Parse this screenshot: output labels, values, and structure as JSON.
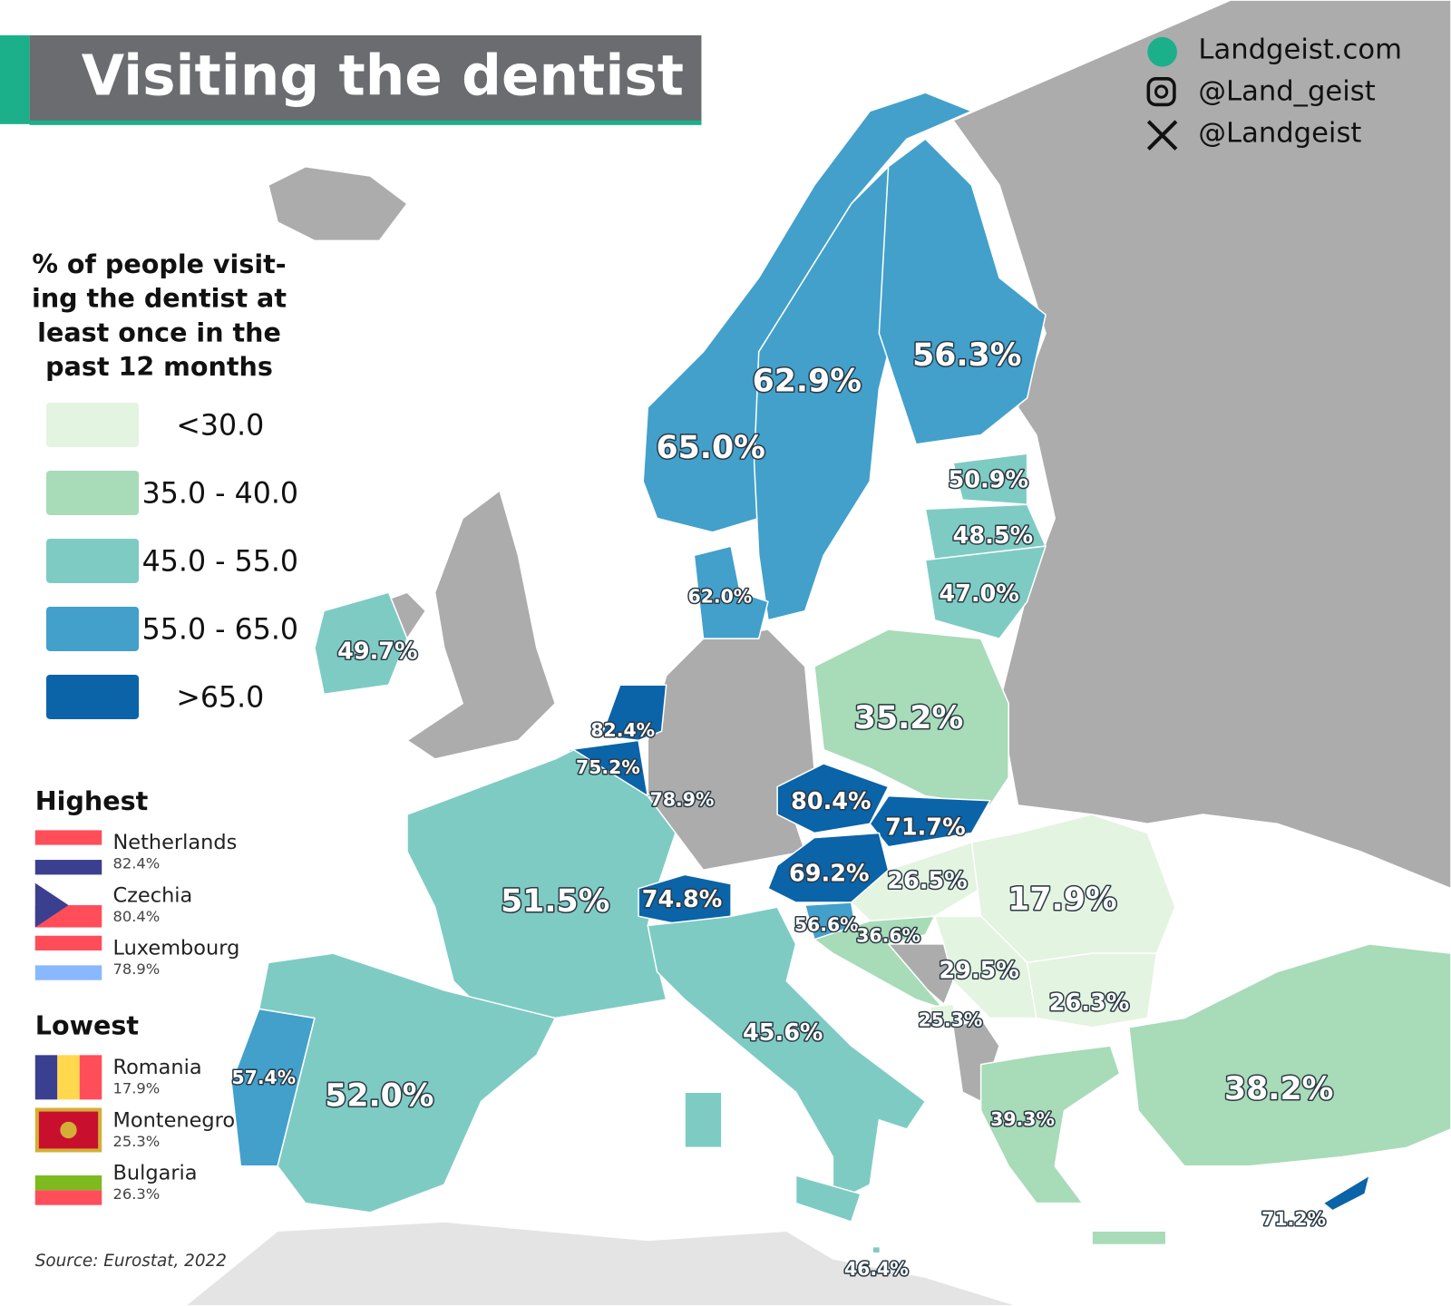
{
  "header": {
    "title": "Visiting the dentist"
  },
  "social": [
    "Landgeist.com",
    "@Land_geist",
    "@Landgeist"
  ],
  "legend": {
    "title_lines": [
      "% of people visit-",
      "ing the dentist at",
      "least once in the",
      "past 12 months"
    ],
    "items": [
      {
        "label": "<30.0",
        "color": "#e3f4e0"
      },
      {
        "label": "35.0 - 40.0",
        "color": "#a8dbb8"
      },
      {
        "label": "45.0 - 55.0",
        "color": "#7ecbc4"
      },
      {
        "label": "55.0 - 65.0",
        "color": "#42a0cb"
      },
      {
        "label": ">65.0",
        "color": "#0b63a8"
      }
    ]
  },
  "highest": {
    "heading": "Highest",
    "items": [
      {
        "name": "Netherlands",
        "value": "82.4%"
      },
      {
        "name": "Czechia",
        "value": "80.4%"
      },
      {
        "name": "Luxembourg",
        "value": "78.9%"
      }
    ]
  },
  "lowest": {
    "heading": "Lowest",
    "items": [
      {
        "name": "Romania",
        "value": "17.9%"
      },
      {
        "name": "Montenegro",
        "value": "25.3%"
      },
      {
        "name": "Bulgaria",
        "value": "26.3%"
      }
    ]
  },
  "source": "Source: Eurostat, 2022",
  "map": {
    "regions": [
      {
        "label": "65.0%",
        "color": "#42a0cb"
      },
      {
        "label": "62.9%",
        "color": "#42a0cb"
      },
      {
        "label": "56.3%",
        "color": "#42a0cb"
      },
      {
        "label": "50.9%",
        "color": "#7ecbc4"
      },
      {
        "label": "48.5%",
        "color": "#7ecbc4"
      },
      {
        "label": "47.0%",
        "color": "#7ecbc4"
      },
      {
        "label": "62.0%",
        "color": "#42a0cb"
      },
      {
        "label": "49.7%",
        "color": "#7ecbc4"
      },
      {
        "label": "35.2%",
        "color": "#a8dbb8"
      },
      {
        "label": "82.4%",
        "color": "#0b63a8"
      },
      {
        "label": "75.2%",
        "color": "#0b63a8"
      },
      {
        "label": "78.9%",
        "color": "#0b63a8"
      },
      {
        "label": "80.4%",
        "color": "#0b63a8"
      },
      {
        "label": "71.7%",
        "color": "#0b63a8"
      },
      {
        "label": "69.2%",
        "color": "#0b63a8"
      },
      {
        "label": "26.5%",
        "color": "#e3f4e0"
      },
      {
        "label": "17.9%",
        "color": "#e3f4e0"
      },
      {
        "label": "51.5%",
        "color": "#7ecbc4"
      },
      {
        "label": "74.8%",
        "color": "#0b63a8"
      },
      {
        "label": "56.6%",
        "color": "#42a0cb"
      },
      {
        "label": "36.6%",
        "color": "#a8dbb8"
      },
      {
        "label": "29.5%",
        "color": "#e3f4e0"
      },
      {
        "label": "26.3%",
        "color": "#e3f4e0"
      },
      {
        "label": "25.3%",
        "color": "#e3f4e0"
      },
      {
        "label": "45.6%",
        "color": "#7ecbc4"
      },
      {
        "label": "57.4%",
        "color": "#42a0cb"
      },
      {
        "label": "52.0%",
        "color": "#7ecbc4"
      },
      {
        "label": "39.3%",
        "color": "#a8dbb8"
      },
      {
        "label": "38.2%",
        "color": "#a8dbb8"
      },
      {
        "label": "71.2%",
        "color": "#0b63a8"
      },
      {
        "label": "46.4%",
        "color": "#7ecbc4"
      }
    ]
  }
}
